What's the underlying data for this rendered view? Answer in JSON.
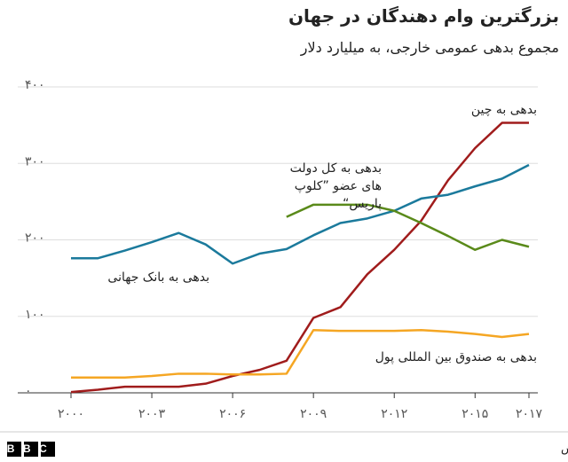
{
  "chart_data": {
    "type": "line",
    "title": "بزرگترین وام دهندگان در جهان",
    "subtitle": "مجموع بدهی عمومی خارجی، به میلیارد دلار",
    "x": [
      2000,
      2001,
      2002,
      2003,
      2004,
      2005,
      2006,
      2007,
      2008,
      2009,
      2010,
      2011,
      2012,
      2013,
      2014,
      2015,
      2016,
      2017
    ],
    "series": [
      {
        "name": "بدهی به چین",
        "color": "#a01c1c",
        "values": [
          1,
          4,
          8,
          8,
          8,
          12,
          22,
          30,
          42,
          98,
          112,
          155,
          187,
          225,
          278,
          320,
          353,
          353
        ]
      },
      {
        "name": "بدهی به بانک جهانی",
        "color": "#1b7a9c",
        "values": [
          176,
          176,
          186,
          197,
          209,
          194,
          169,
          182,
          188,
          206,
          222,
          228,
          238,
          254,
          259,
          270,
          280,
          298
        ]
      },
      {
        "name": "بدهی به کل دولت های عضو ”کلوپ پاریس“",
        "color": "#5a8a1a",
        "values": [
          null,
          null,
          null,
          null,
          null,
          null,
          null,
          null,
          230,
          246,
          246,
          246,
          238,
          222,
          205,
          187,
          200,
          191
        ]
      },
      {
        "name": "بدهی به صندوق بین المللی پول",
        "color": "#f5a623",
        "values": [
          20,
          20,
          20,
          22,
          25,
          25,
          24,
          24,
          25,
          82,
          81,
          81,
          81,
          82,
          80,
          77,
          73,
          77
        ]
      }
    ],
    "xlim": [
      2000,
      2017
    ],
    "xticks": [
      {
        "value": 2000,
        "label": "۲۰۰۰"
      },
      {
        "value": 2003,
        "label": "۲۰۰۳"
      },
      {
        "value": 2006,
        "label": "۲۰۰۶"
      },
      {
        "value": 2009,
        "label": "۲۰۰۹"
      },
      {
        "value": 2012,
        "label": "۲۰۱۲"
      },
      {
        "value": 2015,
        "label": "۲۰۱۵"
      },
      {
        "value": 2017,
        "label": "۲۰۱۷"
      }
    ],
    "ylim": [
      0,
      400
    ],
    "yticks": [
      {
        "value": 0,
        "label": "۰"
      },
      {
        "value": 100,
        "label": "۱۰۰"
      },
      {
        "value": 200,
        "label": "۲۰۰"
      },
      {
        "value": 300,
        "label": "۳۰۰"
      },
      {
        "value": 400,
        "label": "۴۰۰"
      }
    ],
    "grid": true
  },
  "footer": {
    "logo": "BBC",
    "source": "منبع: آمار بدهی بین المللی بانک جهانی، ”کلوپ پاریس“؛ هورن، راینهارت و تربش"
  }
}
